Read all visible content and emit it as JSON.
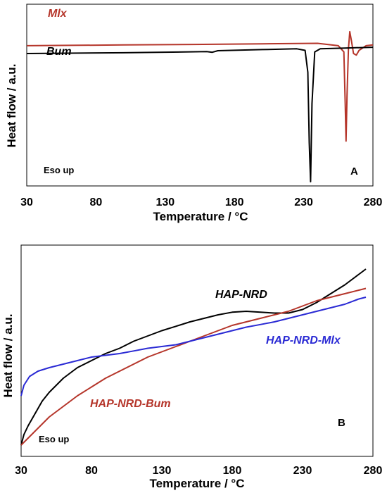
{
  "chart_data": [
    {
      "type": "line",
      "panel_label": "A",
      "annotation": "Eso up",
      "xlabel": "Temperature / °C",
      "ylabel": "Heat flow / a.u.",
      "xlim": [
        30,
        280
      ],
      "xticks": [
        30,
        80,
        130,
        180,
        230,
        280
      ],
      "grid": false,
      "series": [
        {
          "name": "Mlx",
          "color": "#b5352a",
          "x": [
            30,
            100,
            150,
            200,
            240,
            255,
            259,
            260,
            260.6,
            261.3,
            262.3,
            263.3,
            264.5,
            266,
            268,
            270,
            275,
            280
          ],
          "y": [
            0.87,
            0.875,
            0.878,
            0.882,
            0.885,
            0.87,
            0.83,
            0.5,
            0.26,
            0.55,
            0.85,
            0.96,
            0.9,
            0.82,
            0.81,
            0.84,
            0.87,
            0.875
          ]
        },
        {
          "name": "Bum",
          "color": "#000000",
          "x": [
            30,
            100,
            160,
            164,
            168,
            200,
            225,
            231,
            233,
            234,
            235,
            236,
            238,
            242,
            260,
            280
          ],
          "y": [
            0.82,
            0.825,
            0.832,
            0.828,
            0.838,
            0.845,
            0.85,
            0.84,
            0.7,
            0.25,
            0.0,
            0.5,
            0.83,
            0.85,
            0.855,
            0.86
          ]
        }
      ]
    },
    {
      "type": "line",
      "panel_label": "B",
      "annotation": "Eso up",
      "xlabel": "Temperature / °C",
      "ylabel": "Heat flow / a.u.",
      "xlim": [
        30,
        280
      ],
      "xticks": [
        30,
        80,
        130,
        180,
        230,
        280
      ],
      "grid": false,
      "series": [
        {
          "name": "HAP-NRD",
          "color": "#000000",
          "x": [
            30,
            32,
            35,
            40,
            45,
            50,
            60,
            70,
            80,
            90,
            100,
            110,
            120,
            130,
            140,
            150,
            160,
            170,
            180,
            190,
            200,
            210,
            220,
            230,
            240,
            250,
            260,
            270,
            275
          ],
          "y": [
            0.0,
            0.06,
            0.11,
            0.18,
            0.25,
            0.3,
            0.38,
            0.44,
            0.48,
            0.52,
            0.55,
            0.59,
            0.62,
            0.65,
            0.675,
            0.7,
            0.72,
            0.74,
            0.755,
            0.76,
            0.755,
            0.75,
            0.75,
            0.77,
            0.81,
            0.86,
            0.91,
            0.97,
            1.0
          ]
        },
        {
          "name": "HAP-NRD-Bum",
          "color": "#b5352a",
          "x": [
            30,
            40,
            50,
            60,
            70,
            80,
            90,
            100,
            110,
            120,
            130,
            140,
            150,
            160,
            170,
            180,
            190,
            200,
            210,
            220,
            230,
            240,
            250,
            260,
            270,
            275
          ],
          "y": [
            0.0,
            0.08,
            0.16,
            0.22,
            0.28,
            0.33,
            0.38,
            0.42,
            0.46,
            0.5,
            0.53,
            0.56,
            0.59,
            0.62,
            0.65,
            0.68,
            0.7,
            0.72,
            0.74,
            0.76,
            0.79,
            0.82,
            0.84,
            0.86,
            0.88,
            0.89
          ]
        },
        {
          "name": "HAP-NRD-Mlx",
          "color": "#2a2ad4",
          "x": [
            30,
            32,
            36,
            42,
            50,
            60,
            70,
            80,
            90,
            100,
            110,
            120,
            130,
            140,
            150,
            160,
            170,
            180,
            190,
            200,
            210,
            220,
            230,
            240,
            250,
            260,
            270,
            275
          ],
          "y": [
            0.28,
            0.34,
            0.39,
            0.42,
            0.44,
            0.46,
            0.48,
            0.5,
            0.51,
            0.52,
            0.535,
            0.55,
            0.56,
            0.57,
            0.59,
            0.61,
            0.63,
            0.65,
            0.67,
            0.685,
            0.7,
            0.72,
            0.74,
            0.76,
            0.78,
            0.8,
            0.83,
            0.84
          ]
        }
      ]
    }
  ]
}
